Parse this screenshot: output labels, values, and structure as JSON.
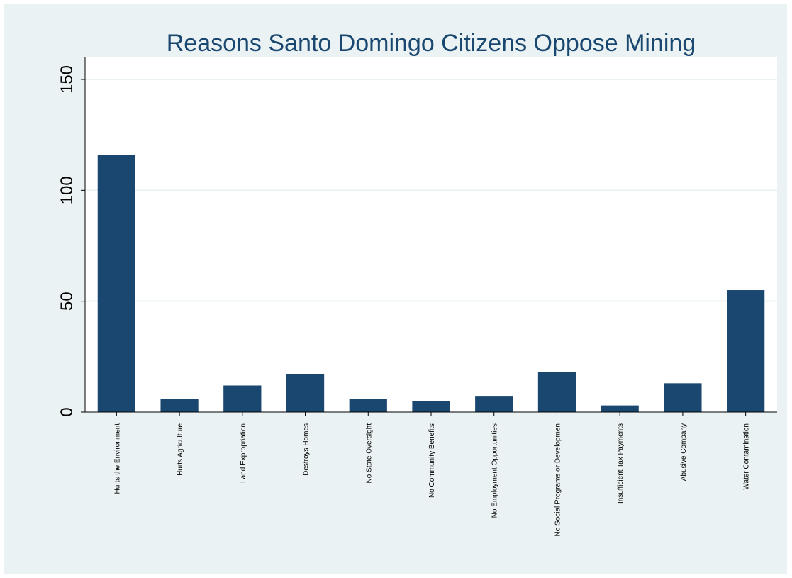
{
  "chart_data": {
    "type": "bar",
    "title": "Reasons Santo Domingo Citizens Oppose Mining",
    "xlabel": "",
    "ylabel": "",
    "categories": [
      "Hurts the Environment",
      "Hurts Agriculture",
      "Land Expropriation",
      "Destroys Homes",
      "No State Oversight",
      "No Community Benefits",
      "No Employment Opportunities",
      "No Social Programs or Developmen",
      "Insufficient Tax Payments",
      "Abusive Company",
      "Water Contamination"
    ],
    "values": [
      116,
      6,
      12,
      17,
      6,
      5,
      7,
      18,
      3,
      13,
      55
    ],
    "ylim": [
      0,
      150
    ],
    "yticks": [
      0,
      50,
      100,
      150
    ],
    "grid": true,
    "legend": "none",
    "colors": {
      "bar": "#1a476f",
      "title": "#1a476f",
      "background": "#eaf2f3",
      "plot_background": "#ffffff",
      "gridline": "#eaf2f3"
    }
  }
}
